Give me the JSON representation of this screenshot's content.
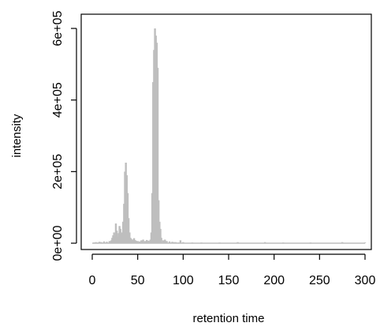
{
  "chart_data": {
    "type": "bar",
    "title": "",
    "xlabel": "retention time",
    "ylabel": "intensity",
    "xlim": [
      0,
      310
    ],
    "ylim": [
      0,
      620000
    ],
    "xticks": [
      0,
      50,
      100,
      150,
      200,
      250,
      300
    ],
    "xtick_labels": [
      "0",
      "50",
      "100",
      "150",
      "200",
      "250",
      "300"
    ],
    "yticks": [
      0,
      200000,
      400000,
      600000
    ],
    "ytick_labels": [
      "0e+00",
      "2e+05",
      "4e+05",
      "6e+05"
    ],
    "box": true,
    "grid": false,
    "bar_color": "#bebebe",
    "series": [
      {
        "x": [
          2,
          4,
          6,
          8,
          10,
          13,
          16,
          19,
          21,
          22,
          23,
          24,
          25,
          26,
          27,
          28,
          29,
          30,
          31,
          32,
          33,
          34,
          35,
          36,
          37,
          38,
          39,
          40,
          41,
          42,
          43,
          44,
          45,
          46,
          47,
          48,
          50,
          52,
          54,
          56,
          58,
          60,
          62,
          64,
          65,
          66,
          67,
          68,
          69,
          70,
          71,
          72,
          73,
          74,
          75,
          76,
          78,
          80,
          82,
          85,
          88,
          90,
          92,
          95,
          97,
          100,
          110,
          120,
          140,
          160,
          190,
          210,
          240,
          275,
          300
        ],
        "y": [
          2000,
          3000,
          2000,
          4000,
          3000,
          5000,
          4000,
          6000,
          8000,
          15000,
          22000,
          30000,
          20000,
          55000,
          35000,
          18000,
          28000,
          48000,
          40000,
          25000,
          30000,
          60000,
          110000,
          200000,
          225000,
          190000,
          140000,
          70000,
          30000,
          15000,
          12000,
          8000,
          10000,
          14000,
          9000,
          7000,
          6000,
          5000,
          8000,
          10000,
          6000,
          9000,
          7000,
          10000,
          30000,
          140000,
          450000,
          540000,
          600000,
          580000,
          560000,
          490000,
          120000,
          60000,
          40000,
          15000,
          8000,
          10000,
          6000,
          5000,
          4000,
          3000,
          3000,
          2000,
          8000,
          3000,
          2000,
          2000,
          2000,
          3000,
          3000,
          2000,
          2000,
          3000,
          2000
        ]
      }
    ]
  }
}
